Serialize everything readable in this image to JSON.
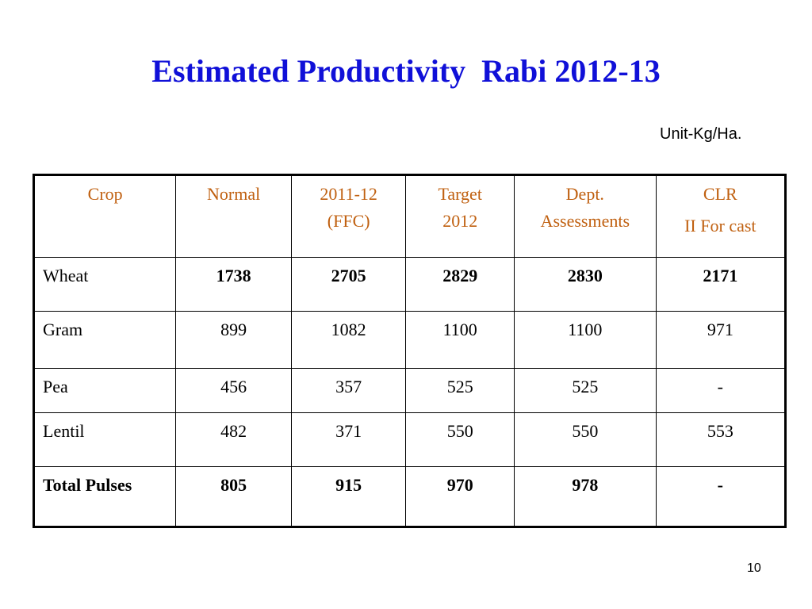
{
  "slide": {
    "title": "Estimated Productivity  Rabi 2012-13",
    "unit": "Unit-Kg/Ha.",
    "page_number": "10"
  },
  "table": {
    "headers": [
      {
        "lines": [
          "Crop"
        ]
      },
      {
        "lines": [
          "Normal"
        ]
      },
      {
        "lines": [
          "2011-12",
          "(FFC)"
        ]
      },
      {
        "lines": [
          "Target",
          "2012"
        ]
      },
      {
        "lines": [
          "Dept.",
          "Assessments"
        ]
      },
      {
        "lines": [
          "CLR",
          "II For cast"
        ]
      }
    ],
    "rows": [
      {
        "crop": "Wheat",
        "values": [
          "1738",
          "2705",
          "2829",
          "2830",
          "2171"
        ]
      },
      {
        "crop": "Gram",
        "values": [
          "899",
          "1082",
          "1100",
          "1100",
          "971"
        ]
      },
      {
        "crop": "Pea",
        "values": [
          "456",
          "357",
          "525",
          "525",
          "-"
        ]
      },
      {
        "crop": "Lentil",
        "values": [
          "482",
          "371",
          "550",
          "550",
          "553"
        ]
      },
      {
        "crop": "Total Pulses",
        "values": [
          "805",
          "915",
          "970",
          "978",
          "-"
        ]
      }
    ]
  }
}
